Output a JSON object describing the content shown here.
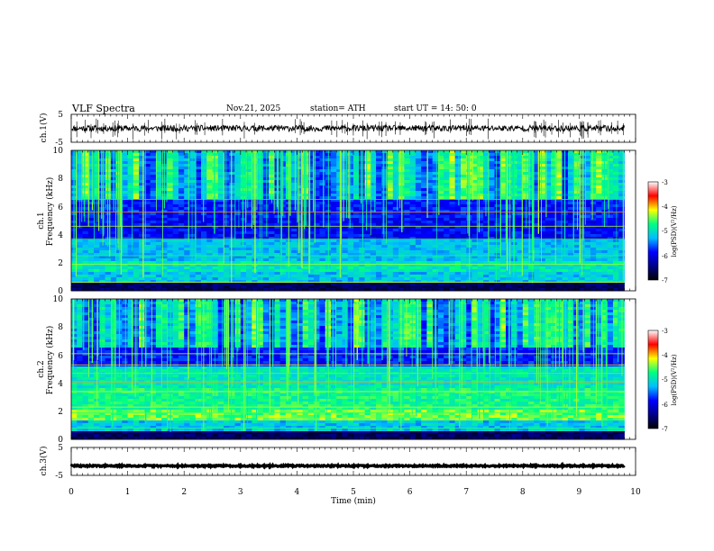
{
  "header": {
    "title": "VLF  Spectra",
    "date": "Nov.21, 2025",
    "station": "station= ATH",
    "start": "start  UT  =   14: 50: 0"
  },
  "chart_data": [
    {
      "type": "line",
      "name": "waveform ch.1",
      "ylabel": "ch.1(V)",
      "ylim": [
        -5,
        5
      ],
      "yticks": [
        "5",
        "-5"
      ],
      "xlim": [
        0,
        10
      ],
      "x_end": 9.8,
      "baseline": 0,
      "trace_color": "#000000"
    },
    {
      "type": "heatmap",
      "name": "spectrogram ch.1",
      "ylabel_channel": "ch.1",
      "ylabel": "Frequency  (kHz)",
      "ylim": [
        0,
        10
      ],
      "yticks": [
        "0",
        "2",
        "4",
        "6",
        "8",
        "10"
      ],
      "xlim": [
        0,
        10
      ],
      "x_end": 9.8,
      "colorbar": {
        "label": "log(PSD)(V²/Hz)",
        "range": [
          -7,
          -3
        ],
        "ticks": [
          "-3",
          "-4",
          "-5",
          "-6",
          "-7"
        ],
        "colors": [
          "#000000",
          "#00008b",
          "#0000ff",
          "#00bfff",
          "#00ff80",
          "#ffff00",
          "#ff0000",
          "#ffffff"
        ]
      }
    },
    {
      "type": "heatmap",
      "name": "spectrogram ch.2",
      "ylabel_channel": "ch.2",
      "ylabel": "Frequency  (kHz)",
      "ylim": [
        0,
        10
      ],
      "yticks": [
        "0",
        "2",
        "4",
        "6",
        "8",
        "10"
      ],
      "xlim": [
        0,
        10
      ],
      "x_end": 9.8,
      "colorbar": {
        "label": "log(PSD)(V²/Hz)",
        "range": [
          -7,
          -3
        ],
        "ticks": [
          "-3",
          "-4",
          "-5",
          "-6",
          "-7"
        ],
        "colors": [
          "#000000",
          "#00008b",
          "#0000ff",
          "#00bfff",
          "#00ff80",
          "#ffff00",
          "#ff0000",
          "#ffffff"
        ]
      }
    },
    {
      "type": "line",
      "name": "waveform ch.3",
      "ylabel": "ch.3(V)",
      "ylim": [
        -5,
        5
      ],
      "yticks": [
        "5",
        "-5"
      ],
      "xlim": [
        0,
        10
      ],
      "x_end": 9.8,
      "baseline": -1.6,
      "trace_color": "#000000"
    }
  ],
  "xaxis": {
    "label": "Time  (min)",
    "ticks": [
      "0",
      "1",
      "2",
      "3",
      "4",
      "5",
      "6",
      "7",
      "8",
      "9",
      "10"
    ]
  }
}
